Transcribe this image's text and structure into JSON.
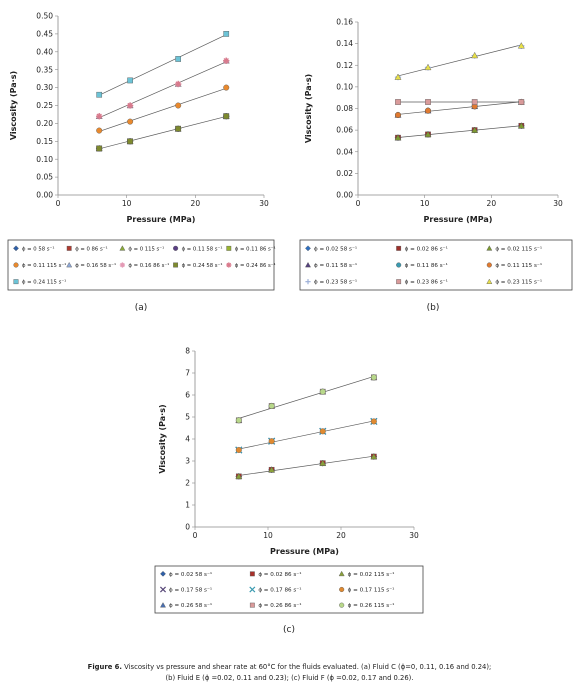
{
  "figure": {
    "caption_bold": "Figure 6.",
    "caption_line1": "Viscosity vs pressure and shear rate at 60°C for the fluids evaluated. (a) Fluid C (ϕ=0, 0.11, 0.16 and 0.24);",
    "caption_line2": "(b) Fluid E (ϕ =0.02, 0.11 and 0.23); (c) Fluid F (ϕ =0.02, 0.17 and 0.26)."
  },
  "chart_data": [
    {
      "id": "a",
      "panel_label": "(a)",
      "type": "scatter",
      "xlabel": "Pressure (MPa)",
      "ylabel": "Viscosity  (Pa·s)",
      "xlim": [
        0,
        30
      ],
      "ylim": [
        0,
        0.5
      ],
      "xticks": [
        "0",
        "10",
        "20",
        "30"
      ],
      "yticks": [
        "0.00",
        "0.05",
        "0.10",
        "0.15",
        "0.20",
        "0.25",
        "0.30",
        "0.35",
        "0.40",
        "0.45",
        "0.50"
      ],
      "trendlines": true,
      "legend_position": "bottom",
      "legend_cols": 5,
      "series": [
        {
          "name": "ϕ = 0    58 s⁻¹",
          "color": "#2e5fa8",
          "marker": "diamond",
          "x": [
            6,
            10.5,
            17.5,
            24.5
          ],
          "y": [
            0.13,
            0.15,
            0.185,
            0.22
          ]
        },
        {
          "name": "ϕ = 0    86 s⁻¹",
          "color": "#b03a30",
          "marker": "square",
          "x": [
            6,
            10.5,
            17.5,
            24.5
          ],
          "y": [
            0.13,
            0.15,
            0.185,
            0.22
          ]
        },
        {
          "name": "ϕ = 0    115 s⁻¹",
          "color": "#8aaa3a",
          "marker": "triangle",
          "x": [
            6,
            10.5,
            17.5,
            24.5
          ],
          "y": [
            0.13,
            0.15,
            0.185,
            0.22
          ]
        },
        {
          "name": "ϕ = 0.11 58 s⁻¹",
          "color": "#5a3f85",
          "marker": "circle",
          "x": [
            6,
            10.5,
            17.5,
            24.5
          ],
          "y": [
            0.13,
            0.15,
            0.185,
            0.22
          ]
        },
        {
          "name": "ϕ = 0.11 86 s⁻¹",
          "color": "#9ab530",
          "marker": "square",
          "x": [
            6,
            10.5,
            17.5,
            24.5
          ],
          "y": [
            0.13,
            0.15,
            0.185,
            0.22
          ]
        },
        {
          "name": "ϕ = 0.11 115 s⁻¹",
          "color": "#e8892e",
          "marker": "circle",
          "x": [
            6,
            10.5,
            17.5,
            24.5
          ],
          "y": [
            0.18,
            0.205,
            0.25,
            0.3
          ]
        },
        {
          "name": "ϕ = 0.16   58 s⁻¹",
          "color": "#8fa9d8",
          "marker": "triangle",
          "x": [
            6,
            10.5,
            17.5,
            24.5
          ],
          "y": [
            0.22,
            0.25,
            0.31,
            0.375
          ]
        },
        {
          "name": "ϕ = 0.16 86 s⁻¹",
          "color": "#e49ab5",
          "marker": "star",
          "x": [
            6,
            10.5,
            17.5,
            24.5
          ],
          "y": [
            0.22,
            0.25,
            0.31,
            0.375
          ]
        },
        {
          "name": "ϕ = 0.24 58 s⁻¹",
          "color": "#7e8a2e",
          "marker": "square",
          "x": [
            6,
            10.5,
            17.5,
            24.5
          ],
          "y": [
            0.13,
            0.15,
            0.185,
            0.22
          ]
        },
        {
          "name": "ϕ = 0.24 86 s⁻¹",
          "color": "#d97a8c",
          "marker": "star",
          "x": [
            6,
            10.5,
            17.5,
            24.5
          ],
          "y": [
            0.22,
            0.25,
            0.31,
            0.375
          ]
        },
        {
          "name": "ϕ = 0.24 115 s⁻¹",
          "color": "#6cc3d6",
          "marker": "square",
          "x": [
            6,
            10.5,
            17.5,
            24.5
          ],
          "y": [
            0.28,
            0.32,
            0.38,
            0.45
          ]
        }
      ]
    },
    {
      "id": "b",
      "panel_label": "(b)",
      "type": "scatter",
      "xlabel": "Pressure (MPa)",
      "ylabel": "Viscosity  (Pa·s)",
      "xlim": [
        0,
        30
      ],
      "ylim": [
        0,
        0.16
      ],
      "xticks": [
        "0",
        "10",
        "20",
        "30"
      ],
      "yticks": [
        "0.00",
        "0.02",
        "0.04",
        "0.06",
        "0.08",
        "0.10",
        "0.12",
        "0.14",
        "0.16"
      ],
      "trendlines": true,
      "legend_position": "bottom",
      "legend_cols": 3,
      "series": [
        {
          "name": "ϕ = 0.02 58 s⁻¹",
          "color": "#2e6fc0",
          "marker": "diamond",
          "x": [
            6,
            10.5,
            17.5,
            24.5
          ],
          "y": [
            0.053,
            0.056,
            0.06,
            0.064
          ]
        },
        {
          "name": "ϕ = 0.02 86 s⁻¹",
          "color": "#9e2f2a",
          "marker": "square",
          "x": [
            6,
            10.5,
            17.5,
            24.5
          ],
          "y": [
            0.053,
            0.056,
            0.06,
            0.064
          ]
        },
        {
          "name": "ϕ = 0.02 115 s⁻¹",
          "color": "#7d9a32",
          "marker": "triangle",
          "x": [
            6,
            10.5,
            17.5,
            24.5
          ],
          "y": [
            0.053,
            0.056,
            0.06,
            0.064
          ]
        },
        {
          "name": "ϕ = 0.11 58 s⁻¹",
          "color": "#54407e",
          "marker": "triangle",
          "x": [
            6,
            10.5,
            17.5,
            24.5
          ],
          "y": [
            0.074,
            0.078,
            0.082,
            0.086
          ]
        },
        {
          "name": "ϕ = 0.11 86 s⁻¹",
          "color": "#3a9ab0",
          "marker": "circle",
          "x": [
            6,
            10.5,
            17.5,
            24.5
          ],
          "y": [
            0.074,
            0.078,
            0.082,
            0.086
          ]
        },
        {
          "name": "ϕ = 0.11 115 s⁻¹",
          "color": "#e07a30",
          "marker": "circle",
          "x": [
            6,
            10.5,
            17.5,
            24.5
          ],
          "y": [
            0.074,
            0.078,
            0.082,
            0.086
          ]
        },
        {
          "name": "ϕ = 0.23 58 s⁻¹",
          "color": "#9db0d8",
          "marker": "plus",
          "x": [
            6,
            10.5,
            17.5,
            24.5
          ],
          "y": [
            0.109,
            0.118,
            0.129,
            0.138
          ]
        },
        {
          "name": "ϕ = 0.23 86 s⁻¹",
          "color": "#d99a9a",
          "marker": "square",
          "x": [
            6,
            10.5,
            17.5,
            24.5
          ],
          "y": [
            0.086,
            0.086,
            0.086,
            0.086
          ]
        },
        {
          "name": "ϕ = 0.23 115 s⁻¹",
          "color": "#e8e04a",
          "marker": "triangle",
          "x": [
            6,
            10.5,
            17.5,
            24.5
          ],
          "y": [
            0.109,
            0.118,
            0.129,
            0.138
          ]
        }
      ]
    },
    {
      "id": "c",
      "panel_label": "(c)",
      "type": "scatter",
      "xlabel": "Pressure (MPa)",
      "ylabel": "Viscosity  (Pa·s)",
      "xlim": [
        0,
        30
      ],
      "ylim": [
        0,
        8
      ],
      "xticks": [
        "0",
        "10",
        "20",
        "30"
      ],
      "yticks": [
        "0",
        "1",
        "2",
        "3",
        "4",
        "5",
        "6",
        "7",
        "8"
      ],
      "trendlines": true,
      "legend_position": "bottom",
      "legend_cols": 3,
      "series": [
        {
          "name": "ϕ = 0.02 58 s⁻¹",
          "color": "#2e5fa8",
          "marker": "diamond",
          "x": [
            6,
            10.5,
            17.5,
            24.5
          ],
          "y": [
            2.3,
            2.6,
            2.9,
            3.2
          ]
        },
        {
          "name": "ϕ = 0.02 86 s⁻¹",
          "color": "#a8302a",
          "marker": "square",
          "x": [
            6,
            10.5,
            17.5,
            24.5
          ],
          "y": [
            2.3,
            2.6,
            2.9,
            3.2
          ]
        },
        {
          "name": "ϕ = 0.02 115 s⁻¹",
          "color": "#8aa03a",
          "marker": "triangle",
          "x": [
            6,
            10.5,
            17.5,
            24.5
          ],
          "y": [
            2.3,
            2.6,
            2.9,
            3.2
          ]
        },
        {
          "name": "ϕ = 0.17 58 s⁻¹",
          "color": "#5a4a7a",
          "marker": "x",
          "x": [
            6,
            10.5,
            17.5,
            24.5
          ],
          "y": [
            3.5,
            3.9,
            4.35,
            4.8
          ]
        },
        {
          "name": "ϕ = 0.17 86 s⁻¹",
          "color": "#3a9ab0",
          "marker": "x",
          "x": [
            6,
            10.5,
            17.5,
            24.5
          ],
          "y": [
            3.5,
            3.9,
            4.35,
            4.8
          ]
        },
        {
          "name": "ϕ = 0.17 115 s⁻¹",
          "color": "#e08a30",
          "marker": "circle",
          "x": [
            6,
            10.5,
            17.5,
            24.5
          ],
          "y": [
            3.5,
            3.9,
            4.35,
            4.8
          ]
        },
        {
          "name": "ϕ = 0.26 58 s⁻¹",
          "color": "#4a6fb0",
          "marker": "triangle",
          "x": [
            6,
            10.5,
            17.5,
            24.5
          ],
          "y": [
            4.85,
            5.5,
            6.15,
            6.8
          ]
        },
        {
          "name": "ϕ = 0.26 86 s⁻¹",
          "color": "#d99a9a",
          "marker": "square",
          "x": [
            6,
            10.5,
            17.5,
            24.5
          ],
          "y": [
            4.85,
            5.5,
            6.15,
            6.8
          ]
        },
        {
          "name": "ϕ = 0.26 115 s⁻¹",
          "color": "#b8d88a",
          "marker": "circle",
          "x": [
            6,
            10.5,
            17.5,
            24.5
          ],
          "y": [
            4.85,
            5.5,
            6.15,
            6.8
          ]
        }
      ]
    }
  ]
}
